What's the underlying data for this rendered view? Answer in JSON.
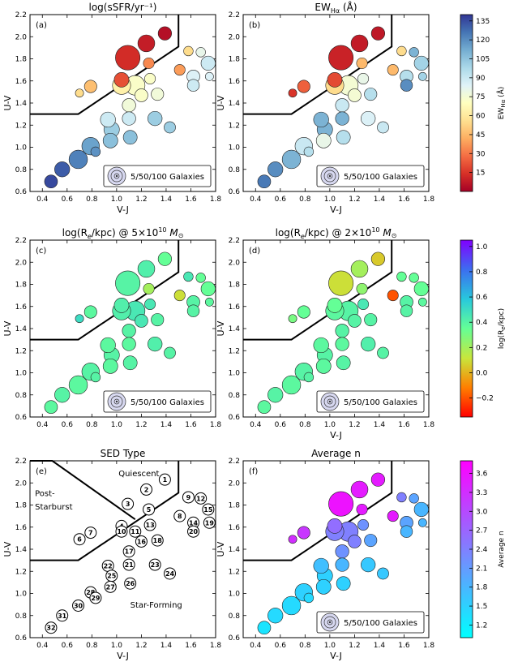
{
  "chart_data": [
    {
      "panel": "a",
      "type": "scatter",
      "title": "log(sSFR/yr⁻¹)",
      "xlabel": "V-J",
      "ylabel": "U-V",
      "xlim": [
        0.3,
        1.8
      ],
      "ylim": [
        0.6,
        2.2
      ],
      "x_ticks": [
        "0.4",
        "0.6",
        "0.8",
        "1.0",
        "1.2",
        "1.4",
        "1.6",
        "1.8"
      ],
      "y_ticks": [
        "0.6",
        "0.8",
        "1.0",
        "1.2",
        "1.4",
        "1.6",
        "1.8",
        "2.0",
        "2.2"
      ],
      "panel_label": "(a)",
      "legend": "5/50/100 Galaxies",
      "colorbar": {
        "label": "EW",
        "label_sub": "Hα",
        "label_unit": "(Å)",
        "ticks": [
          "15",
          "30",
          "45",
          "60",
          "75",
          "90",
          "105",
          "120",
          "135"
        ],
        "range": [
          0,
          140
        ],
        "colormap": "RdYlBu"
      },
      "series_values": [
        -11.2,
        -11.1,
        -11.0,
        -10.8,
        -10.5,
        -10.0,
        -10.2,
        -10.4,
        -10.0,
        -9.8,
        -9.6,
        -9.4,
        -9.6,
        -9.3,
        -9.2,
        -9.6,
        -9.5,
        -9.5,
        -9.3,
        -9.2,
        -9.2,
        -9.2,
        -8.9,
        -8.9,
        -8.9,
        -8.8,
        -8.8,
        -8.6,
        -8.5,
        -8.4,
        -8.2,
        -8.1
      ]
    },
    {
      "panel": "b",
      "type": "scatter",
      "title": "EW",
      "title_sub": "Hα",
      "title_unit": "(Å)",
      "xlabel": "V-J",
      "ylabel": "U-V",
      "xlim": [
        0.3,
        1.8
      ],
      "ylim": [
        0.6,
        2.2
      ],
      "x_ticks": [
        "0.4",
        "0.6",
        "0.8",
        "1.0",
        "1.2",
        "1.4",
        "1.6",
        "1.8"
      ],
      "y_ticks": [
        "0.6",
        "0.8",
        "1.0",
        "1.2",
        "1.4",
        "1.6",
        "1.8",
        "2.0",
        "2.2"
      ],
      "panel_label": "(b)",
      "legend": "5/50/100 Galaxies",
      "series_values": [
        7,
        8,
        10,
        20,
        45,
        15,
        25,
        45,
        55,
        55,
        75,
        110,
        80,
        95,
        100,
        75,
        90,
        95,
        100,
        120,
        110,
        110,
        85,
        90,
        110,
        95,
        80,
        90,
        95,
        110,
        120,
        125
      ]
    },
    {
      "panel": "c",
      "type": "scatter",
      "title": "log(R",
      "title_rest": "/kpc) @ 5×10",
      "title_exp": "10",
      "title_mass": "M",
      "xlabel": "",
      "ylabel": "U-V",
      "xlim": [
        0.3,
        1.8
      ],
      "ylim": [
        0.6,
        2.2
      ],
      "x_ticks": [
        "0.4",
        "0.6",
        "0.8",
        "1.0",
        "1.2",
        "1.4",
        "1.6",
        "1.8"
      ],
      "y_ticks": [
        "0.6",
        "0.8",
        "1.0",
        "1.2",
        "1.4",
        "1.6",
        "1.8",
        "2.0",
        "2.2"
      ],
      "panel_label": "(c)",
      "legend": "5/50/100 Galaxies",
      "colorbar": {
        "label": "log(R",
        "label_rest": "/kpc)",
        "ticks": [
          "−0.2",
          "0.0",
          "0.2",
          "0.4",
          "0.6",
          "0.8",
          "1.0"
        ],
        "range": [
          -0.35,
          1.05
        ],
        "colormap": "rainbow"
      },
      "series_values": [
        0.35,
        0.42,
        0.4,
        0.42,
        0.2,
        0.5,
        0.38,
        0.1,
        0.45,
        0.42,
        0.45,
        0.35,
        0.45,
        0.4,
        0.35,
        0.45,
        0.4,
        0.4,
        0.38,
        0.4,
        0.38,
        0.38,
        0.42,
        0.4,
        0.4,
        0.4,
        0.38,
        0.4,
        0.4,
        0.38,
        0.4,
        0.38
      ]
    },
    {
      "panel": "d",
      "type": "scatter",
      "title": "log(R",
      "title_rest": "/kpc) @ 2×10",
      "title_exp": "10",
      "title_mass": "M",
      "xlabel": "V-J",
      "ylabel": "U-V",
      "xlim": [
        0.3,
        1.8
      ],
      "ylim": [
        0.6,
        2.2
      ],
      "x_ticks": [
        "0.4",
        "0.6",
        "0.8",
        "1.0",
        "1.2",
        "1.4",
        "1.6",
        "1.8"
      ],
      "y_ticks": [
        "0.6",
        "0.8",
        "1.0",
        "1.2",
        "1.4",
        "1.6",
        "1.8",
        "2.0",
        "2.2"
      ],
      "panel_label": "(d)",
      "legend": "5/50/100 Galaxies",
      "series_values": [
        0.05,
        0.2,
        0.1,
        0.35,
        0.25,
        0.3,
        0.35,
        -0.2,
        0.35,
        0.38,
        0.4,
        0.35,
        0.45,
        0.4,
        0.35,
        0.4,
        0.4,
        0.4,
        0.38,
        0.4,
        0.38,
        0.38,
        0.42,
        0.4,
        0.4,
        0.4,
        0.38,
        0.4,
        0.4,
        0.38,
        0.4,
        0.38
      ]
    },
    {
      "panel": "e",
      "type": "scatter",
      "title": "SED Type",
      "xlabel": "V-J",
      "ylabel": "U-V",
      "xlim": [
        0.3,
        1.8
      ],
      "ylim": [
        0.6,
        2.2
      ],
      "x_ticks": [
        "0.4",
        "0.6",
        "0.8",
        "1.0",
        "1.2",
        "1.4",
        "1.6",
        "1.8"
      ],
      "y_ticks": [
        "0.6",
        "0.8",
        "1.0",
        "1.2",
        "1.4",
        "1.6",
        "1.8",
        "2.0",
        "2.2"
      ],
      "panel_label": "(e)",
      "region_labels": [
        "Quiescent",
        "Post-",
        "Starburst",
        "Star-Forming"
      ]
    },
    {
      "panel": "f",
      "type": "scatter",
      "title": "Average n",
      "xlabel": "V-J",
      "ylabel": "U-V",
      "xlim": [
        0.3,
        1.8
      ],
      "ylim": [
        0.6,
        2.2
      ],
      "x_ticks": [
        "0.4",
        "0.6",
        "0.8",
        "1.0",
        "1.2",
        "1.4",
        "1.6",
        "1.8"
      ],
      "y_ticks": [
        "0.6",
        "0.8",
        "1.0",
        "1.2",
        "1.4",
        "1.6",
        "1.8",
        "2.0",
        "2.2"
      ],
      "panel_label": "(f)",
      "legend": "5/50/100 Galaxies",
      "colorbar": {
        "label": "Average n",
        "ticks": [
          "1.2",
          "1.5",
          "1.8",
          "2.1",
          "2.4",
          "2.7",
          "3.0",
          "3.3",
          "3.6"
        ],
        "range": [
          1.0,
          3.8
        ],
        "colormap": "cool"
      },
      "series_values": [
        3.5,
        3.5,
        3.6,
        2.6,
        3.5,
        3.3,
        3.2,
        3.5,
        2.4,
        2.4,
        2.4,
        2.0,
        2.2,
        2.0,
        1.8,
        2.4,
        2.2,
        2.0,
        1.8,
        1.8,
        1.8,
        1.7,
        1.6,
        1.6,
        1.5,
        1.5,
        1.5,
        1.5,
        1.4,
        1.4,
        1.4,
        1.3
      ]
    }
  ],
  "bins": {
    "ids": [
      "1",
      "2",
      "3",
      "4",
      "5",
      "6",
      "7",
      "8",
      "9",
      "10",
      "11",
      "12",
      "13",
      "14",
      "15",
      "16",
      "17",
      "18",
      "19",
      "20",
      "21",
      "22",
      "23",
      "24",
      "25",
      "26",
      "27",
      "28",
      "29",
      "30",
      "31",
      "32"
    ],
    "vj": [
      1.39,
      1.24,
      1.09,
      1.04,
      1.26,
      0.7,
      0.79,
      1.51,
      1.58,
      1.04,
      1.15,
      1.68,
      1.27,
      1.62,
      1.74,
      1.2,
      1.1,
      1.33,
      1.75,
      1.62,
      1.1,
      0.93,
      1.31,
      1.43,
      0.96,
      1.11,
      0.95,
      0.79,
      0.83,
      0.69,
      0.56,
      0.47
    ],
    "uv": [
      2.03,
      1.94,
      1.81,
      1.61,
      1.76,
      1.49,
      1.55,
      1.7,
      1.87,
      1.56,
      1.56,
      1.86,
      1.62,
      1.64,
      1.76,
      1.47,
      1.38,
      1.48,
      1.64,
      1.56,
      1.26,
      1.25,
      1.26,
      1.18,
      1.16,
      1.09,
      1.06,
      1.01,
      0.96,
      0.89,
      0.8,
      0.69
    ],
    "n_gal": [
      22,
      40,
      100,
      28,
      12,
      5,
      18,
      12,
      8,
      48,
      58,
      8,
      12,
      20,
      26,
      20,
      22,
      18,
      5,
      16,
      22,
      30,
      26,
      14,
      32,
      24,
      28,
      44,
      8,
      50,
      30,
      20
    ],
    "sed_type": [
      "Quiescent",
      "Quiescent",
      "Quiescent",
      "Quiescent",
      "Quiescent",
      "Post-Starburst",
      "Post-Starburst",
      "Quiescent",
      "Quiescent",
      "Quiescent",
      "Quiescent",
      "Quiescent",
      "Quiescent",
      "Quiescent",
      "Quiescent",
      "Star-Forming",
      "Star-Forming",
      "Star-Forming",
      "Star-Forming",
      "Star-Forming",
      "Star-Forming",
      "Star-Forming",
      "Star-Forming",
      "Star-Forming",
      "Star-Forming",
      "Star-Forming",
      "Star-Forming",
      "Star-Forming",
      "Star-Forming",
      "Star-Forming",
      "Star-Forming",
      "Star-Forming"
    ]
  },
  "selection_boundary": {
    "vj": [
      0.3,
      0.69,
      1.5,
      1.5
    ],
    "uv": [
      1.3,
      1.3,
      1.91,
      2.2
    ]
  },
  "post_starburst_boundary": {
    "vj": [
      0.3,
      0.48,
      1.15
    ],
    "uv": [
      2.2,
      2.2,
      1.67
    ]
  }
}
